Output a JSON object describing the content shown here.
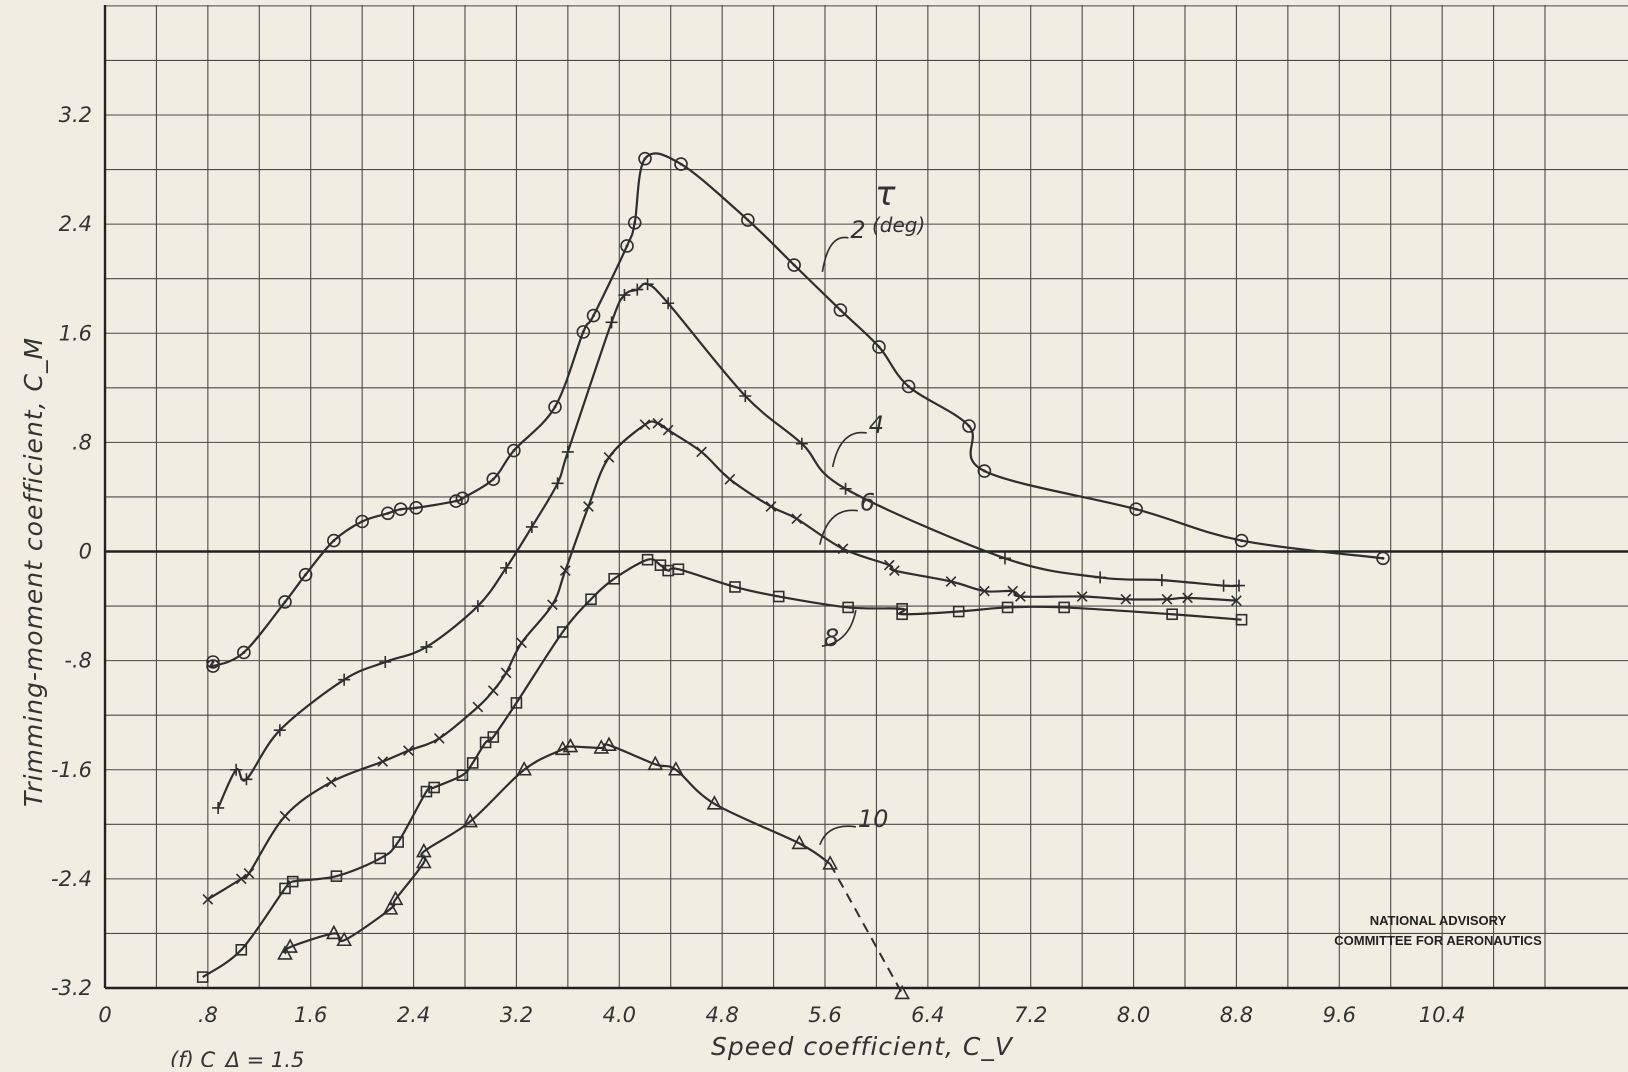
{
  "chart_data": {
    "type": "line",
    "title": "",
    "xlabel": "Speed coefficient, C_V",
    "ylabel": "Trimming-moment coefficient, C_M",
    "xlim": [
      0,
      11.2
    ],
    "ylim": [
      -3.2,
      4.0
    ],
    "grid": true,
    "x_ticks": [
      0,
      0.8,
      1.6,
      2.4,
      3.2,
      4.0,
      4.8,
      5.6,
      6.4,
      7.2,
      8.0,
      8.8,
      9.6,
      10.4
    ],
    "x_tick_labels": [
      "0",
      ".8",
      "1.6",
      "2.4",
      "3.2",
      "4.0",
      "4.8",
      "5.6",
      "6.4",
      "7.2",
      "8.0",
      "8.8",
      "9.6",
      "10.4"
    ],
    "y_ticks": [
      3.2,
      2.4,
      1.6,
      0.8,
      0,
      -0.8,
      -1.6,
      -2.4,
      -3.2
    ],
    "y_tick_labels": [
      "3.2",
      "2.4",
      "1.6",
      ".8",
      "0",
      "-.8",
      "-1.6",
      "-2.4",
      "-3.2"
    ],
    "legend_title": "τ",
    "legend_subtitle": "(deg)",
    "caption": "(f) C_Δ = 1.5",
    "credit": [
      "NATIONAL ADVISORY",
      "COMMITTEE FOR AERONAUTICS"
    ],
    "series": [
      {
        "name": "2",
        "marker": "circle",
        "points": [
          [
            0.84,
            -0.81
          ],
          [
            0.84,
            -0.84
          ],
          [
            1.08,
            -0.74
          ],
          [
            1.4,
            -0.37
          ],
          [
            1.56,
            -0.17
          ],
          [
            1.78,
            0.08
          ],
          [
            2.0,
            0.22
          ],
          [
            2.2,
            0.28
          ],
          [
            2.3,
            0.31
          ],
          [
            2.42,
            0.32
          ],
          [
            2.73,
            0.37
          ],
          [
            2.78,
            0.39
          ],
          [
            3.02,
            0.53
          ],
          [
            3.18,
            0.74
          ],
          [
            3.5,
            1.06
          ],
          [
            3.72,
            1.61
          ],
          [
            3.8,
            1.73
          ],
          [
            4.06,
            2.24
          ],
          [
            4.12,
            2.41
          ],
          [
            4.2,
            2.88
          ],
          [
            4.48,
            2.84
          ],
          [
            5.0,
            2.43
          ],
          [
            5.36,
            2.1
          ],
          [
            5.72,
            1.77
          ],
          [
            6.02,
            1.5
          ],
          [
            6.25,
            1.21
          ],
          [
            6.72,
            0.92
          ],
          [
            6.84,
            0.59
          ],
          [
            8.02,
            0.31
          ],
          [
            8.84,
            0.08
          ],
          [
            9.94,
            -0.05
          ]
        ]
      },
      {
        "name": "4",
        "marker": "plus",
        "points": [
          [
            0.88,
            -1.88
          ],
          [
            1.02,
            -1.6
          ],
          [
            1.1,
            -1.67
          ],
          [
            1.36,
            -1.31
          ],
          [
            1.86,
            -0.94
          ],
          [
            2.18,
            -0.81
          ],
          [
            2.5,
            -0.7
          ],
          [
            2.9,
            -0.4
          ],
          [
            3.12,
            -0.12
          ],
          [
            3.32,
            0.18
          ],
          [
            3.52,
            0.5
          ],
          [
            3.6,
            0.73
          ],
          [
            3.94,
            1.68
          ],
          [
            4.04,
            1.88
          ],
          [
            4.14,
            1.92
          ],
          [
            4.22,
            1.96
          ],
          [
            4.38,
            1.82
          ],
          [
            4.98,
            1.14
          ],
          [
            5.42,
            0.79
          ],
          [
            5.76,
            0.46
          ],
          [
            7.0,
            -0.05
          ],
          [
            7.74,
            -0.19
          ],
          [
            8.22,
            -0.21
          ],
          [
            8.7,
            -0.25
          ],
          [
            8.82,
            -0.25
          ]
        ]
      },
      {
        "name": "6",
        "marker": "x",
        "points": [
          [
            0.8,
            -2.55
          ],
          [
            1.06,
            -2.4
          ],
          [
            1.12,
            -2.36
          ],
          [
            1.4,
            -1.94
          ],
          [
            1.76,
            -1.69
          ],
          [
            2.16,
            -1.54
          ],
          [
            2.36,
            -1.46
          ],
          [
            2.6,
            -1.37
          ],
          [
            2.9,
            -1.14
          ],
          [
            3.02,
            -1.02
          ],
          [
            3.12,
            -0.89
          ],
          [
            3.24,
            -0.67
          ],
          [
            3.48,
            -0.39
          ],
          [
            3.58,
            -0.14
          ],
          [
            3.76,
            0.33
          ],
          [
            3.92,
            0.69
          ],
          [
            4.2,
            0.93
          ],
          [
            4.3,
            0.94
          ],
          [
            4.38,
            0.89
          ],
          [
            4.64,
            0.73
          ],
          [
            4.86,
            0.53
          ],
          [
            5.18,
            0.33
          ],
          [
            5.38,
            0.24
          ],
          [
            5.74,
            0.02
          ],
          [
            6.1,
            -0.1
          ],
          [
            6.14,
            -0.14
          ],
          [
            6.58,
            -0.22
          ],
          [
            6.84,
            -0.29
          ],
          [
            7.06,
            -0.29
          ],
          [
            7.12,
            -0.33
          ],
          [
            7.6,
            -0.33
          ],
          [
            7.94,
            -0.35
          ],
          [
            8.26,
            -0.35
          ],
          [
            8.42,
            -0.34
          ],
          [
            8.8,
            -0.36
          ]
        ]
      },
      {
        "name": "8",
        "marker": "square",
        "points": [
          [
            0.76,
            -3.12
          ],
          [
            1.06,
            -2.92
          ],
          [
            1.4,
            -2.47
          ],
          [
            1.46,
            -2.42
          ],
          [
            1.8,
            -2.38
          ],
          [
            2.14,
            -2.25
          ],
          [
            2.28,
            -2.13
          ],
          [
            2.5,
            -1.76
          ],
          [
            2.56,
            -1.73
          ],
          [
            2.78,
            -1.64
          ],
          [
            2.86,
            -1.55
          ],
          [
            2.96,
            -1.4
          ],
          [
            3.02,
            -1.36
          ],
          [
            3.2,
            -1.11
          ],
          [
            3.56,
            -0.59
          ],
          [
            3.78,
            -0.35
          ],
          [
            3.96,
            -0.2
          ],
          [
            4.22,
            -0.06
          ],
          [
            4.32,
            -0.1
          ],
          [
            4.38,
            -0.14
          ],
          [
            4.46,
            -0.13
          ],
          [
            4.9,
            -0.26
          ],
          [
            5.24,
            -0.33
          ],
          [
            5.78,
            -0.41
          ],
          [
            6.2,
            -0.42
          ],
          [
            6.2,
            -0.46
          ],
          [
            6.64,
            -0.44
          ],
          [
            7.02,
            -0.41
          ],
          [
            7.46,
            -0.41
          ],
          [
            8.3,
            -0.46
          ],
          [
            8.84,
            -0.5
          ]
        ]
      },
      {
        "name": "10",
        "marker": "triangle",
        "points": [
          [
            1.4,
            -2.95
          ],
          [
            1.44,
            -2.9
          ],
          [
            1.78,
            -2.8
          ],
          [
            1.86,
            -2.85
          ],
          [
            2.22,
            -2.62
          ],
          [
            2.26,
            -2.55
          ],
          [
            2.48,
            -2.28
          ],
          [
            2.48,
            -2.2
          ],
          [
            2.84,
            -1.98
          ],
          [
            3.26,
            -1.6
          ],
          [
            3.56,
            -1.45
          ],
          [
            3.62,
            -1.43
          ],
          [
            3.86,
            -1.44
          ],
          [
            3.92,
            -1.42
          ],
          [
            4.28,
            -1.56
          ],
          [
            4.44,
            -1.6
          ],
          [
            4.74,
            -1.85
          ],
          [
            5.4,
            -2.14
          ],
          [
            5.64,
            -2.29
          ],
          [
            6.2,
            -3.24
          ]
        ]
      }
    ]
  }
}
